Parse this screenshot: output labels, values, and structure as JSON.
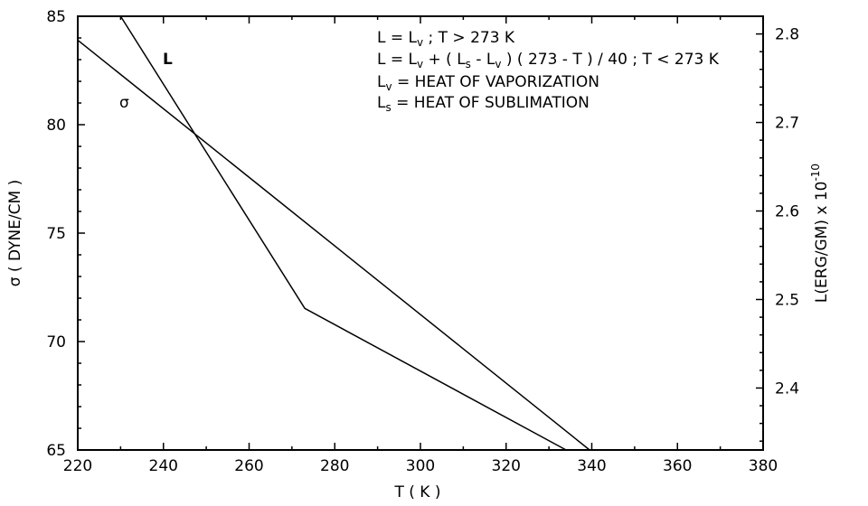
{
  "chart_data": {
    "type": "line",
    "title": "",
    "xlabel": "T ( K )",
    "ylabel_left": "σ ( DYNE/CM )",
    "ylabel_right_prefix": "L(ERG/GM) x 10",
    "ylabel_right_exponent": "-10",
    "xlim": [
      220,
      380
    ],
    "ylim_left": [
      65,
      85
    ],
    "ylim_right": [
      2.33,
      2.82
    ],
    "x_ticks": [
      "220",
      "240",
      "260",
      "280",
      "300",
      "320",
      "340",
      "360",
      "380"
    ],
    "y_left_ticks": [
      "65",
      "70",
      "75",
      "80",
      "85"
    ],
    "y_right_ticks": [
      "2.4",
      "2.5",
      "2.6",
      "2.7",
      "2.8"
    ],
    "grid": false,
    "series": [
      {
        "name": "σ",
        "axis": "left",
        "x": [
          220,
          339.5
        ],
        "y": [
          83.9,
          65
        ]
      },
      {
        "name": "L",
        "axis": "right",
        "x": [
          230,
          273,
          334
        ],
        "y": [
          2.82,
          2.49,
          2.33
        ]
      }
    ],
    "annotations": [
      {
        "id": "line1",
        "parts": [
          [
            "L = L",
            ""
          ],
          [
            "v",
            "sub"
          ],
          [
            " ; T > 273 K",
            ""
          ]
        ]
      },
      {
        "id": "line2",
        "parts": [
          [
            "L = L",
            ""
          ],
          [
            "v",
            "sub"
          ],
          [
            " + ( L",
            ""
          ],
          [
            "s",
            "sub"
          ],
          [
            " - L",
            ""
          ],
          [
            "v",
            "sub"
          ],
          [
            " ) ( 273 - T ) / 40 ; T < 273 K",
            ""
          ]
        ]
      },
      {
        "id": "line3",
        "parts": [
          [
            "L",
            ""
          ],
          [
            "v",
            "sub"
          ],
          [
            " = HEAT OF VAPORIZATION",
            ""
          ]
        ]
      },
      {
        "id": "line4",
        "parts": [
          [
            "L",
            ""
          ],
          [
            "s",
            "sub"
          ],
          [
            " = HEAT OF SUBLIMATION",
            ""
          ]
        ]
      }
    ]
  }
}
